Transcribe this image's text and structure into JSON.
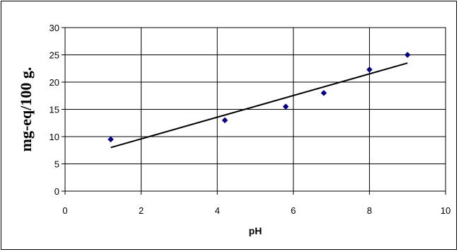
{
  "chart_data": {
    "type": "scatter",
    "title": "",
    "xlabel": "pH",
    "ylabel": "mg-eq/100 g.",
    "xlim": [
      0,
      10
    ],
    "ylim": [
      0,
      30
    ],
    "x_ticks": [
      "0",
      "2",
      "4",
      "6",
      "8",
      "10"
    ],
    "y_ticks": [
      "0",
      "5",
      "10",
      "15",
      "20",
      "25",
      "30"
    ],
    "grid": true,
    "legend": "none",
    "series": [
      {
        "points": [
          {
            "x": 1.2,
            "y": 9.5
          },
          {
            "x": 4.2,
            "y": 13
          },
          {
            "x": 5.8,
            "y": 15.5
          },
          {
            "x": 6.8,
            "y": 18
          },
          {
            "x": 8.0,
            "y": 22.3
          },
          {
            "x": 9.0,
            "y": 25
          }
        ],
        "color": "#00008B",
        "marker": "diamond"
      }
    ],
    "trendline": {
      "type": "linear",
      "from": {
        "x": 1.2,
        "y": 8.0
      },
      "to": {
        "x": 9.0,
        "y": 23.5
      },
      "color": "#000000"
    }
  }
}
